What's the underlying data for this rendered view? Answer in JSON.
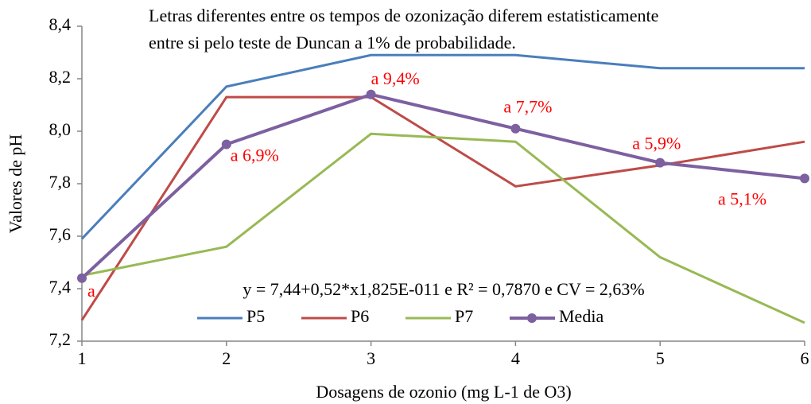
{
  "chart_data": {
    "type": "line",
    "note": [
      "Letras diferentes entre os tempos de ozonização diferem estatisticamente",
      "entre si pelo teste de Duncan a 1% de probabilidade."
    ],
    "equation": "y = 7,44+0,52*x1,825E-011 e R² = 0,7870 e CV = 2,63%",
    "xlabel": "Dosagens de ozonio (mg L-1 de O3)",
    "ylabel": "Valores de pH",
    "x": [
      1,
      2,
      3,
      4,
      5,
      6
    ],
    "xlim": [
      1,
      6
    ],
    "xticks": [
      1,
      2,
      3,
      4,
      5,
      6
    ],
    "ylim": [
      7.2,
      8.4
    ],
    "yticks": [
      {
        "value": 7.2,
        "label": "7,2"
      },
      {
        "value": 7.4,
        "label": "7,4"
      },
      {
        "value": 7.6,
        "label": "7,6"
      },
      {
        "value": 7.8,
        "label": "7,8"
      },
      {
        "value": 8.0,
        "label": "8,0"
      },
      {
        "value": 8.2,
        "label": "8,2"
      },
      {
        "value": 8.4,
        "label": "8,4"
      }
    ],
    "series": [
      {
        "name": "P5",
        "color": "#4a7ebb",
        "values": [
          7.59,
          8.17,
          8.29,
          8.29,
          8.24,
          8.24
        ]
      },
      {
        "name": "P6",
        "color": "#be4b48",
        "values": [
          7.28,
          8.13,
          8.13,
          7.79,
          7.87,
          7.96
        ]
      },
      {
        "name": "P7",
        "color": "#98b954",
        "values": [
          7.45,
          7.56,
          7.99,
          7.96,
          7.52,
          7.27
        ]
      },
      {
        "name": "Media",
        "color": "#7d60a0",
        "values": [
          7.44,
          7.95,
          8.14,
          8.01,
          7.88,
          7.82
        ],
        "markers": true,
        "point_labels": [
          "a",
          "a 6,9%",
          "a 9,4%",
          "a 7,7%",
          "a 5,9%",
          "a 5,1%"
        ]
      }
    ]
  }
}
